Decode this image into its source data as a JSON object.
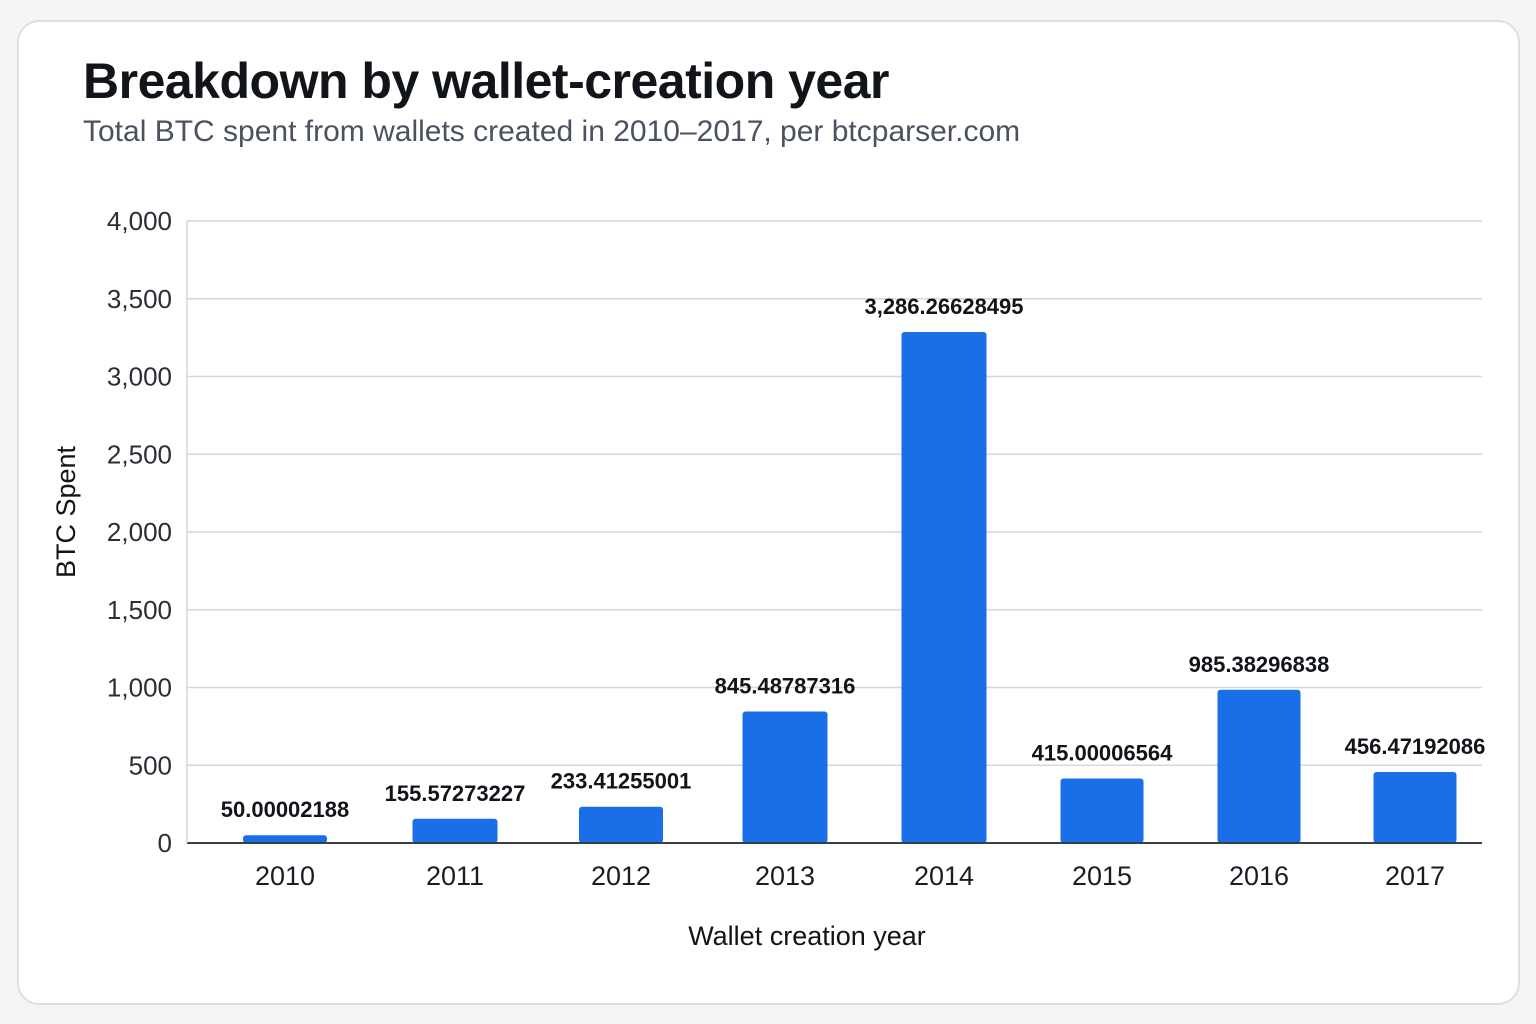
{
  "header": {
    "title": "Breakdown by wallet-creation year",
    "subtitle": "Total BTC spent from wallets created in 2010–2017, per btcparser.com"
  },
  "colors": {
    "bar": "#1a6fe8",
    "grid": "#d4d7dc",
    "axis": "#3a3f47"
  },
  "chart_data": {
    "type": "bar",
    "categories": [
      "2010",
      "2011",
      "2012",
      "2013",
      "2014",
      "2015",
      "2016",
      "2017"
    ],
    "values": [
      50.00002188,
      155.57273227,
      233.41255001,
      845.48787316,
      3286.26628495,
      415.00006564,
      985.38296838,
      456.47192086
    ],
    "data_labels": [
      "50.00002188",
      "155.57273227",
      "233.41255001",
      "845.48787316",
      "3,286.26628495",
      "415.00006564",
      "985.38296838",
      "456.47192086"
    ],
    "xlabel": "Wallet creation year",
    "ylabel": "BTC Spent",
    "ylim": [
      0,
      4000
    ],
    "yticks": [
      0,
      500,
      1000,
      1500,
      2000,
      2500,
      3000,
      3500,
      4000
    ],
    "ytick_labels": [
      "0",
      "500",
      "1,000",
      "1,500",
      "2,000",
      "2,500",
      "3,000",
      "3,500",
      "4,000"
    ],
    "grid": true
  }
}
